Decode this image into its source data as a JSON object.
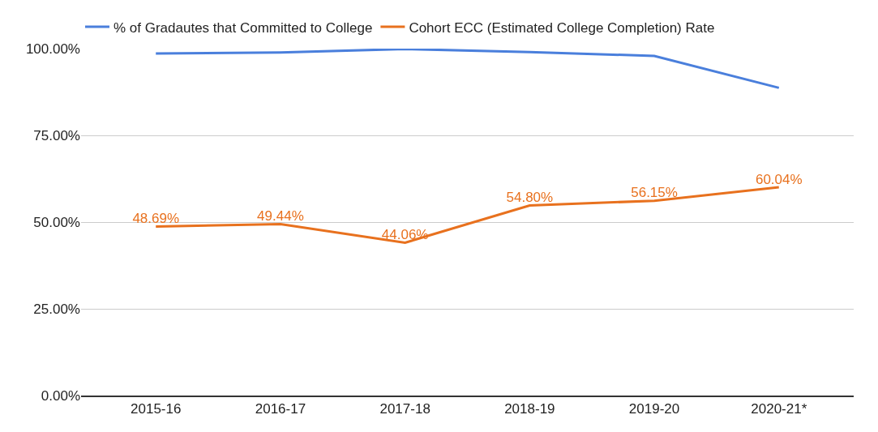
{
  "chart_data": {
    "type": "line",
    "categories": [
      "2015-16",
      "2016-17",
      "2017-18",
      "2018-19",
      "2019-20",
      "2020-21*"
    ],
    "series": [
      {
        "name": "% of Gradautes that Committed to College",
        "color": "#4a7fdc",
        "values": [
          98.6,
          98.9,
          99.9,
          99.0,
          97.9,
          88.7
        ]
      },
      {
        "name": "Cohort ECC (Estimated College Completion) Rate",
        "color": "#e8711e",
        "values": [
          48.69,
          49.44,
          44.06,
          54.8,
          56.15,
          60.04
        ],
        "value_labels": [
          "48.69%",
          "49.44%",
          "44.06%",
          "54.80%",
          "56.15%",
          "60.04%"
        ]
      }
    ],
    "ylim": [
      0,
      100
    ],
    "yticks": [
      {
        "value": 0,
        "label": "0.00%"
      },
      {
        "value": 25,
        "label": "25.00%"
      },
      {
        "value": 50,
        "label": "50.00%"
      },
      {
        "value": 75,
        "label": "75.00%"
      },
      {
        "value": 100,
        "label": "100.00%"
      }
    ],
    "grid": "y",
    "legend": "top left",
    "marker": "none",
    "line_style": "solid"
  }
}
